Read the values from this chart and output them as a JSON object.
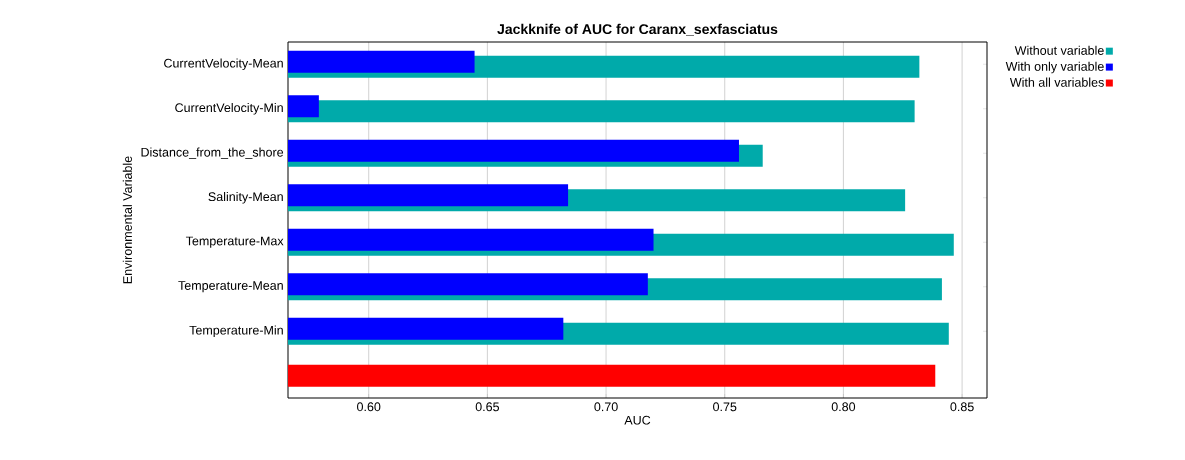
{
  "chart_data": {
    "type": "bar",
    "orientation": "horizontal",
    "title": "Jackknife of AUC for Caranx_sexfasciatus",
    "xlabel": "AUC",
    "ylabel": "Environmental Variable",
    "categories": [
      "CurrentVelocity-Mean",
      "CurrentVelocity-Min",
      "Distance_from_the_shore",
      "Salinity-Mean",
      "Temperature-Max",
      "Temperature-Mean",
      "Temperature-Min",
      null
    ],
    "series": [
      {
        "name": "Without variable",
        "color": "#00aaaa",
        "values": [
          0.832,
          0.83,
          0.766,
          0.826,
          0.8465,
          0.8415,
          0.8444,
          null
        ]
      },
      {
        "name": "With only variable",
        "color": "#0000ff",
        "values": [
          0.6446,
          0.579,
          0.756,
          0.684,
          0.72,
          0.7176,
          0.682,
          null
        ]
      },
      {
        "name": "With all variables",
        "color": "#ff0000",
        "values": [
          null,
          null,
          null,
          null,
          null,
          null,
          null,
          0.8387
        ]
      }
    ],
    "xlim": [
      0.566,
      0.8605
    ],
    "xticks": [
      {
        "value": 0.6,
        "label": "0.60"
      },
      0.65,
      {
        "value": 0.7,
        "label": "0.70"
      },
      0.75,
      {
        "value": 0.8,
        "label": "0.80"
      },
      0.85
    ],
    "grid": "x",
    "legend": "right"
  }
}
